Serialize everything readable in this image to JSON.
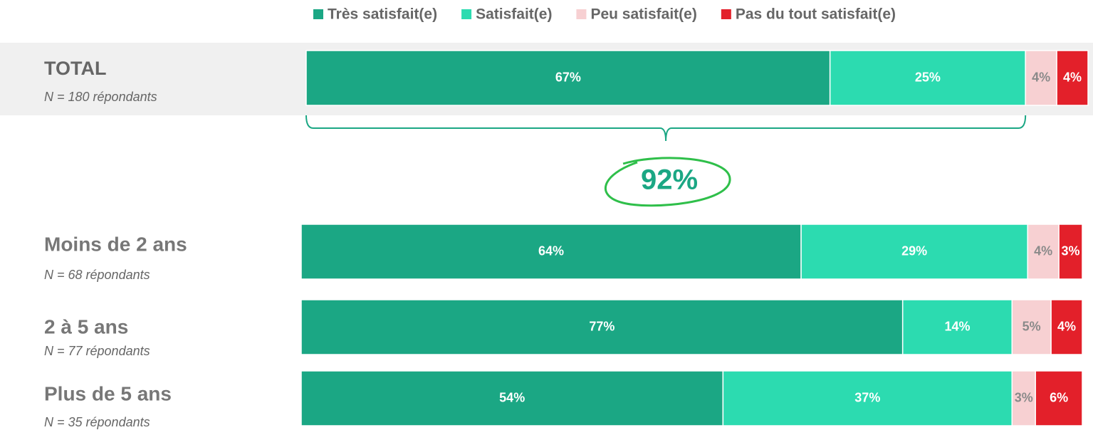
{
  "chart_data": {
    "type": "stacked-bar-horizontal",
    "categories": [
      "TOTAL",
      "Moins de 2 ans",
      "2 à 5 ans",
      "Plus de 5 ans"
    ],
    "category_notes": [
      "N = 180 répondants",
      "N = 68 répondants",
      "N = 77 répondants",
      "N = 35 répondants"
    ],
    "series": [
      {
        "name": "Très satisfait(e)",
        "color": "#1ba784",
        "label_color": "#ffffff",
        "values": [
          67,
          64,
          77,
          54
        ],
        "value_labels": [
          "67%",
          "64%",
          "77%",
          "54%"
        ]
      },
      {
        "name": "Satisfait(e)",
        "color": "#2cdbb0",
        "label_color": "#ffffff",
        "values": [
          25,
          29,
          14,
          37
        ],
        "value_labels": [
          "25%",
          "29%",
          "14%",
          "37%"
        ]
      },
      {
        "name": "Peu satisfait(e)",
        "color": "#f7d0d2",
        "label_color": "#8a8a8a",
        "values": [
          4,
          4,
          5,
          3
        ],
        "value_labels": [
          "4%",
          "4%",
          "5%",
          "3%"
        ]
      },
      {
        "name": "Pas du tout satisfait(e)",
        "color": "#e3202a",
        "label_color": "#ffffff",
        "values": [
          4,
          3,
          4,
          6
        ],
        "value_labels": [
          "4%",
          "3%",
          "4%",
          "6%"
        ]
      }
    ],
    "annotation": "92%",
    "legend": "top"
  }
}
